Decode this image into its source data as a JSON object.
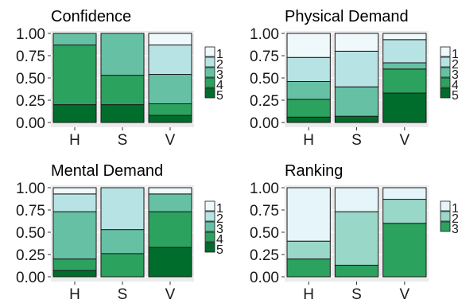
{
  "colors": {
    "panel_bg": "#ebebeb",
    "grid": "#ffffff",
    "bar_outline": "#1a1a1a",
    "level_fill_5": [
      "#eff8fb",
      "#b8e3e4",
      "#66c1a4",
      "#2ca25f",
      "#006d2c"
    ],
    "level_fill_3": [
      "#e5f5f9",
      "#99d8c9",
      "#2ca25f"
    ]
  },
  "chart_data": [
    {
      "type": "bar",
      "stacked": true,
      "title": "Confidence",
      "categories": [
        "H",
        "S",
        "V"
      ],
      "ylim": [
        0,
        1
      ],
      "yticks": [
        "0.00",
        "0.25",
        "0.50",
        "0.75",
        "1.00"
      ],
      "grid": true,
      "legend": {
        "position": "right",
        "labels": [
          "1",
          "2",
          "3",
          "4",
          "5"
        ]
      },
      "series": [
        {
          "name": "1",
          "values": [
            0.0,
            0.0,
            0.13
          ]
        },
        {
          "name": "2",
          "values": [
            0.0,
            0.0,
            0.33
          ]
        },
        {
          "name": "3",
          "values": [
            0.13,
            0.47,
            0.33
          ]
        },
        {
          "name": "4",
          "values": [
            0.67,
            0.33,
            0.13
          ]
        },
        {
          "name": "5",
          "values": [
            0.2,
            0.2,
            0.08
          ]
        }
      ]
    },
    {
      "type": "bar",
      "stacked": true,
      "title": "Physical Demand",
      "categories": [
        "H",
        "S",
        "V"
      ],
      "ylim": [
        0,
        1
      ],
      "yticks": [
        "0.00",
        "0.25",
        "0.50",
        "0.75",
        "1.00"
      ],
      "grid": true,
      "legend": {
        "position": "right",
        "labels": [
          "1",
          "2",
          "3",
          "4",
          "5"
        ]
      },
      "series": [
        {
          "name": "1",
          "values": [
            0.27,
            0.2,
            0.07
          ]
        },
        {
          "name": "2",
          "values": [
            0.27,
            0.4,
            0.26
          ]
        },
        {
          "name": "3",
          "values": [
            0.2,
            0.33,
            0.07
          ]
        },
        {
          "name": "4",
          "values": [
            0.2,
            0.0,
            0.27
          ]
        },
        {
          "name": "5",
          "values": [
            0.06,
            0.07,
            0.33
          ]
        }
      ]
    },
    {
      "type": "bar",
      "stacked": true,
      "title": "Mental Demand",
      "categories": [
        "H",
        "S",
        "V"
      ],
      "ylim": [
        0,
        1
      ],
      "yticks": [
        "0.00",
        "0.25",
        "0.50",
        "0.75",
        "1.00"
      ],
      "grid": true,
      "legend": {
        "position": "right",
        "labels": [
          "1",
          "2",
          "3",
          "4",
          "5"
        ]
      },
      "series": [
        {
          "name": "1",
          "values": [
            0.07,
            0.0,
            0.07
          ]
        },
        {
          "name": "2",
          "values": [
            0.2,
            0.47,
            0.0
          ]
        },
        {
          "name": "3",
          "values": [
            0.53,
            0.27,
            0.2
          ]
        },
        {
          "name": "4",
          "values": [
            0.13,
            0.26,
            0.4
          ]
        },
        {
          "name": "5",
          "values": [
            0.07,
            0.0,
            0.33
          ]
        }
      ]
    },
    {
      "type": "bar",
      "stacked": true,
      "title": "Ranking",
      "categories": [
        "H",
        "S",
        "V"
      ],
      "ylim": [
        0,
        1
      ],
      "yticks": [
        "0.00",
        "0.25",
        "0.50",
        "0.75",
        "1.00"
      ],
      "grid": true,
      "legend": {
        "position": "right",
        "labels": [
          "1",
          "2",
          "3"
        ]
      },
      "series": [
        {
          "name": "1",
          "values": [
            0.6,
            0.27,
            0.13
          ]
        },
        {
          "name": "2",
          "values": [
            0.2,
            0.6,
            0.27
          ]
        },
        {
          "name": "3",
          "values": [
            0.2,
            0.13,
            0.6
          ]
        }
      ]
    }
  ]
}
